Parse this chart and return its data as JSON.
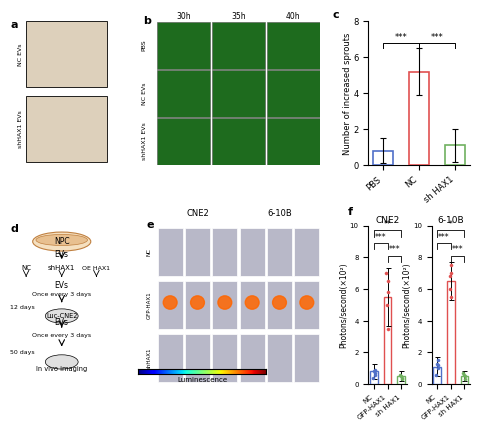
{
  "panel_c": {
    "categories": [
      "PBS",
      "NC",
      "sh HAX1"
    ],
    "values": [
      0.8,
      5.2,
      1.1
    ],
    "errors": [
      0.7,
      1.3,
      0.9
    ],
    "bar_colors": [
      "#5070c8",
      "#e05050",
      "#70b060"
    ],
    "ylabel": "Number of increased sprouts",
    "ylim": [
      0,
      8
    ],
    "yticks": [
      0,
      2,
      4,
      6,
      8
    ],
    "sig_pairs": [
      [
        0,
        1,
        "***"
      ],
      [
        1,
        2,
        "***"
      ]
    ],
    "title": "c"
  },
  "panel_f_cne2": {
    "categories": [
      "NC",
      "GFP-HAX1",
      "sh HAX1"
    ],
    "values": [
      0.8,
      5.5,
      0.5
    ],
    "errors": [
      0.5,
      1.8,
      0.3
    ],
    "bar_colors": [
      "#5070c8",
      "#e05050",
      "#70b060"
    ],
    "ylabel": "Photons/second(×10²)",
    "ylim": [
      0,
      10
    ],
    "yticks": [
      0,
      2,
      4,
      6,
      8,
      10
    ],
    "title": "CNE2",
    "sig_pairs": [
      [
        0,
        2,
        "**"
      ],
      [
        0,
        1,
        "***"
      ],
      [
        1,
        2,
        "***"
      ]
    ],
    "scatter_nc": [
      0.4,
      0.6,
      0.8,
      0.9,
      0.7
    ],
    "scatter_gfp": [
      3.5,
      6.5,
      7.0,
      5.0,
      5.8
    ],
    "scatter_sh": [
      0.3,
      0.4,
      0.5,
      0.6
    ]
  },
  "panel_f_610b": {
    "categories": [
      "NC",
      "GFP-HAX1",
      "sh HAX1"
    ],
    "values": [
      1.1,
      6.5,
      0.5
    ],
    "errors": [
      0.6,
      1.2,
      0.3
    ],
    "bar_colors": [
      "#5070c8",
      "#e05050",
      "#70b060"
    ],
    "ylabel": "Photons/second(×10²)",
    "ylim": [
      0,
      10
    ],
    "yticks": [
      0,
      2,
      4,
      6,
      8,
      10
    ],
    "title": "6-10B",
    "sig_pairs": [
      [
        0,
        2,
        "*"
      ],
      [
        0,
        1,
        "***"
      ],
      [
        1,
        2,
        "***"
      ]
    ],
    "scatter_nc": [
      0.6,
      1.0,
      1.3,
      1.5,
      1.2
    ],
    "scatter_gfp": [
      5.5,
      7.5,
      6.8,
      6.0,
      7.0
    ],
    "scatter_sh": [
      0.3,
      0.5,
      0.6,
      0.7
    ]
  },
  "label_fontsize": 8,
  "tick_fontsize": 6,
  "axis_label_fontsize": 6
}
